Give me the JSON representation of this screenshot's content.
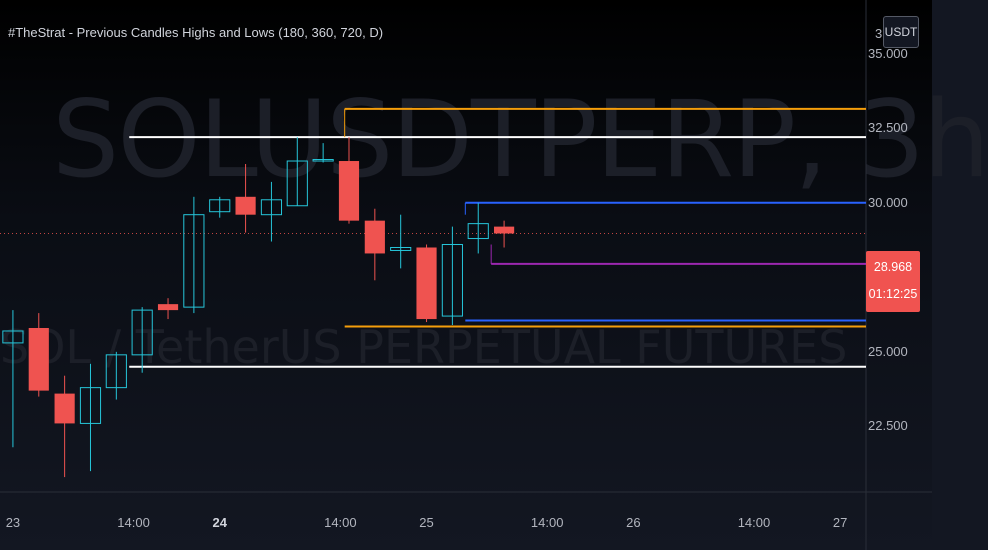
{
  "watermark": {
    "symbol": "SOLUSDTPERP, 3h",
    "description": "SOL / TetherUS PERPETUAL FUTURES"
  },
  "indicator_title": "#TheStrat - Previous Candles Highs and Lows (180, 360, 720, D)",
  "currency": "USDT",
  "price_axis_partial_label": "3",
  "last_price": "28.968",
  "countdown": "01:12:25",
  "colors": {
    "background": "#131722",
    "up_candle": "#26c6da",
    "down_candle": "#ef5350",
    "level_180": "#ffffff",
    "level_360": "#f59e0b",
    "level_720": "#2962ff",
    "level_d": "#9c27b0",
    "last_price_tag": "#f05350"
  },
  "chart_data": {
    "type": "candlestick",
    "symbol": "SOLUSDTPERP",
    "interval": "3h",
    "y_axis": {
      "range": [
        20.3,
        36.8
      ],
      "ticks": [
        "35.000",
        "32.500",
        "30.000",
        "25.000",
        "22.500"
      ]
    },
    "x_axis": {
      "range_hours": [
        -1.5,
        99
      ],
      "ticks": [
        {
          "label": "23",
          "bold": false
        },
        {
          "label": "14:00",
          "bold": false
        },
        {
          "label": "24",
          "bold": true
        },
        {
          "label": "14:00",
          "bold": false
        },
        {
          "label": "25",
          "bold": false
        },
        {
          "label": "14:00",
          "bold": false
        },
        {
          "label": "26",
          "bold": false
        },
        {
          "label": "14:00",
          "bold": false
        },
        {
          "label": "27",
          "bold": false
        }
      ],
      "tick_hours": [
        0,
        14,
        24,
        38,
        48,
        62,
        72,
        86,
        96
      ]
    },
    "candles": [
      {
        "t": 0,
        "o": 25.3,
        "h": 26.4,
        "l": 21.8,
        "c": 25.7
      },
      {
        "t": 3,
        "o": 25.8,
        "h": 26.3,
        "l": 23.5,
        "c": 23.7
      },
      {
        "t": 6,
        "o": 23.6,
        "h": 24.2,
        "l": 20.8,
        "c": 22.6
      },
      {
        "t": 9,
        "o": 22.6,
        "h": 24.6,
        "l": 21.0,
        "c": 23.8
      },
      {
        "t": 12,
        "o": 23.8,
        "h": 25.0,
        "l": 23.4,
        "c": 24.9
      },
      {
        "t": 15,
        "o": 24.9,
        "h": 26.5,
        "l": 24.3,
        "c": 26.4
      },
      {
        "t": 18,
        "o": 26.6,
        "h": 26.8,
        "l": 26.1,
        "c": 26.4
      },
      {
        "t": 21,
        "o": 26.5,
        "h": 30.2,
        "l": 26.3,
        "c": 29.6
      },
      {
        "t": 24,
        "o": 29.7,
        "h": 30.2,
        "l": 29.5,
        "c": 30.1
      },
      {
        "t": 27,
        "o": 30.2,
        "h": 31.3,
        "l": 29.0,
        "c": 29.6
      },
      {
        "t": 30,
        "o": 29.6,
        "h": 30.7,
        "l": 28.7,
        "c": 30.1
      },
      {
        "t": 33,
        "o": 29.9,
        "h": 32.2,
        "l": 29.9,
        "c": 31.4
      },
      {
        "t": 36,
        "o": 31.4,
        "h": 32.0,
        "l": 31.35,
        "c": 31.45
      },
      {
        "t": 39,
        "o": 31.4,
        "h": 32.2,
        "l": 29.3,
        "c": 29.4
      },
      {
        "t": 42,
        "o": 29.4,
        "h": 29.8,
        "l": 27.4,
        "c": 28.3
      },
      {
        "t": 45,
        "o": 28.4,
        "h": 29.6,
        "l": 27.8,
        "c": 28.5
      },
      {
        "t": 48,
        "o": 28.5,
        "h": 28.6,
        "l": 26.0,
        "c": 26.1
      },
      {
        "t": 51,
        "o": 26.2,
        "h": 29.2,
        "l": 25.9,
        "c": 28.6
      },
      {
        "t": 54,
        "o": 28.8,
        "h": 30.0,
        "l": 28.3,
        "c": 29.3
      },
      {
        "t": 57,
        "o": 29.2,
        "h": 29.4,
        "l": 28.5,
        "c": 28.97
      }
    ],
    "level_lines": [
      {
        "name": "180 high",
        "color": "#ffffff",
        "value": 32.2,
        "from_hour": 13.5
      },
      {
        "name": "180 low",
        "color": "#ffffff",
        "value": 24.5,
        "from_hour": 13.5
      },
      {
        "name": "360 high",
        "color": "#f59e0b",
        "value": 33.15,
        "from_hour": 38.5
      },
      {
        "name": "360 low",
        "color": "#f59e0b",
        "value": 25.85,
        "from_hour": 38.5
      },
      {
        "name": "720 high",
        "color": "#2962ff",
        "value": 30.0,
        "from_hour": 52.5
      },
      {
        "name": "720 low",
        "color": "#2962ff",
        "value": 26.05,
        "from_hour": 52.5
      },
      {
        "name": "D low",
        "color": "#9c27b0",
        "value": 27.95,
        "from_hour": 55.5
      }
    ],
    "last_price": 28.968
  }
}
